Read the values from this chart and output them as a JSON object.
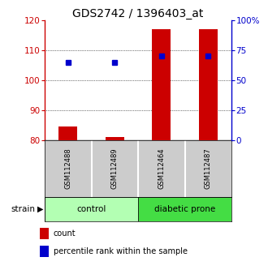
{
  "title": "GDS2742 / 1396403_at",
  "samples": [
    "GSM112488",
    "GSM112489",
    "GSM112464",
    "GSM112487"
  ],
  "bar_values": [
    84.5,
    81.2,
    117.0,
    117.0
  ],
  "percentile_values": [
    106.0,
    106.0,
    108.0,
    108.0
  ],
  "ylim_left": [
    80,
    120
  ],
  "ylim_right": [
    0,
    100
  ],
  "yticks_left": [
    80,
    90,
    100,
    110,
    120
  ],
  "yticks_right": [
    0,
    25,
    50,
    75,
    100
  ],
  "ytick_labels_right": [
    "0",
    "25",
    "50",
    "75",
    "100%"
  ],
  "bar_color": "#cc0000",
  "percentile_color": "#0000cc",
  "bar_bottom": 80,
  "groups": [
    {
      "label": "control",
      "indices": [
        0,
        1
      ],
      "color": "#b3ffb3"
    },
    {
      "label": "diabetic prone",
      "indices": [
        2,
        3
      ],
      "color": "#44dd44"
    }
  ],
  "left_axis_color": "#cc0000",
  "right_axis_color": "#0000cc",
  "sample_box_color": "#cccccc",
  "strain_label": "strain",
  "legend_count": "count",
  "legend_percentile": "percentile rank within the sample",
  "title_fontsize": 10,
  "tick_fontsize": 7.5,
  "bar_width": 0.4
}
